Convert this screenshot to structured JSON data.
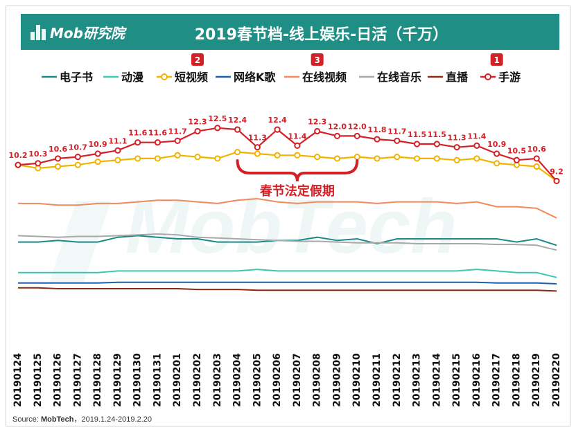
{
  "brand": {
    "name": "Mob研究院"
  },
  "title": "2019春节档-线上娱乐-日活（千万）",
  "source": {
    "label": "Source:",
    "org": "MobTech",
    "range": "，2019.1.24-2019.2.20"
  },
  "watermark": "MobTech",
  "annotation": {
    "text": "春节法定假期",
    "color": "#d42027"
  },
  "chart_data": {
    "type": "line",
    "title": "2019春节档-线上娱乐-日活（千万）",
    "xlabel": "",
    "ylabel": "",
    "ylim": [
      0,
      14
    ],
    "categories": [
      "20190124",
      "20190125",
      "20190126",
      "20190127",
      "20190128",
      "20190129",
      "20190130",
      "20190131",
      "20190201",
      "20190202",
      "20190203",
      "20190204",
      "20190205",
      "20190206",
      "20190207",
      "20190208",
      "20190209",
      "20190210",
      "20190211",
      "20190212",
      "20190213",
      "20190214",
      "20190215",
      "20190216",
      "20190217",
      "20190218",
      "20190219",
      "20190220"
    ],
    "series": [
      {
        "name": "电子书",
        "color": "#1a8a86",
        "marker": false,
        "values": [
          5.4,
          5.4,
          5.5,
          5.4,
          5.4,
          5.7,
          5.8,
          5.7,
          5.6,
          5.6,
          5.4,
          5.4,
          5.4,
          5.5,
          5.5,
          5.7,
          5.5,
          5.6,
          5.3,
          5.6,
          5.6,
          5.6,
          5.6,
          5.6,
          5.6,
          5.4,
          5.6,
          5.2
        ]
      },
      {
        "name": "动漫",
        "color": "#3cc8b0",
        "marker": false,
        "values": [
          3.5,
          3.5,
          3.5,
          3.5,
          3.5,
          3.6,
          3.6,
          3.6,
          3.6,
          3.6,
          3.6,
          3.6,
          3.7,
          3.6,
          3.6,
          3.6,
          3.6,
          3.6,
          3.6,
          3.6,
          3.6,
          3.6,
          3.6,
          3.7,
          3.6,
          3.5,
          3.5,
          3.2
        ]
      },
      {
        "name": "短视频",
        "color": "#f0b400",
        "marker": true,
        "values": [
          10.2,
          10.0,
          10.1,
          10.2,
          10.4,
          10.5,
          10.6,
          10.6,
          10.8,
          10.7,
          10.6,
          11.0,
          10.9,
          10.8,
          10.8,
          10.7,
          10.6,
          10.7,
          10.6,
          10.7,
          10.6,
          10.6,
          10.5,
          10.6,
          10.3,
          10.2,
          10.1,
          9.2
        ]
      },
      {
        "name": "网络K歌",
        "color": "#1f5fa8",
        "marker": false,
        "values": [
          2.85,
          2.85,
          2.85,
          2.85,
          2.85,
          2.9,
          2.9,
          2.9,
          2.9,
          2.9,
          2.9,
          2.9,
          2.9,
          2.9,
          2.9,
          2.9,
          2.9,
          2.9,
          2.9,
          2.9,
          2.9,
          2.9,
          2.9,
          2.9,
          2.85,
          2.85,
          2.85,
          2.8
        ]
      },
      {
        "name": "在线视频",
        "color": "#ef8a5a",
        "marker": false,
        "values": [
          7.8,
          7.8,
          7.7,
          7.7,
          7.8,
          7.8,
          7.9,
          8.0,
          8.0,
          7.9,
          7.8,
          8.0,
          8.1,
          7.9,
          7.8,
          7.9,
          7.9,
          7.9,
          7.8,
          7.9,
          7.9,
          7.9,
          7.8,
          7.9,
          7.6,
          7.6,
          7.5,
          6.9
        ]
      },
      {
        "name": "在线音乐",
        "color": "#a8a8a8",
        "marker": false,
        "values": [
          5.8,
          5.75,
          5.7,
          5.75,
          5.75,
          5.8,
          5.85,
          5.9,
          5.85,
          5.7,
          5.65,
          5.6,
          5.55,
          5.5,
          5.45,
          5.45,
          5.4,
          5.35,
          5.35,
          5.35,
          5.3,
          5.3,
          5.3,
          5.3,
          5.25,
          5.25,
          5.2,
          4.9
        ]
      },
      {
        "name": "直播",
        "color": "#8b2a10",
        "marker": false,
        "values": [
          2.55,
          2.55,
          2.5,
          2.5,
          2.5,
          2.5,
          2.5,
          2.5,
          2.5,
          2.45,
          2.45,
          2.45,
          2.4,
          2.4,
          2.4,
          2.4,
          2.4,
          2.4,
          2.4,
          2.4,
          2.4,
          2.4,
          2.4,
          2.4,
          2.4,
          2.4,
          2.4,
          2.35
        ]
      },
      {
        "name": "手游",
        "color": "#d42027",
        "marker": true,
        "values": [
          10.2,
          10.3,
          10.6,
          10.7,
          10.9,
          11.1,
          11.6,
          11.6,
          11.7,
          12.3,
          12.5,
          12.4,
          11.3,
          12.4,
          11.4,
          12.3,
          12.0,
          12.0,
          11.8,
          11.7,
          11.5,
          11.5,
          11.3,
          11.4,
          10.9,
          10.5,
          10.6,
          9.2
        ],
        "labels": [
          "10.2",
          "10.3",
          "10.6",
          "10.7",
          "10.9",
          "11.1",
          "11.6",
          "11.6",
          "11.7",
          "12.3",
          "12.5",
          "12.4",
          "11.3",
          "12.4",
          "11.4",
          "12.3",
          "12.0",
          "12.0",
          "11.8",
          "11.7",
          "11.5",
          "11.5",
          "11.3",
          "11.4",
          "10.9",
          "10.5",
          "10.6",
          "9.2"
        ]
      }
    ],
    "callouts": [
      {
        "label": "1",
        "category": "20190217"
      },
      {
        "label": "2",
        "category": "20190202"
      },
      {
        "label": "3",
        "category": "20190208"
      }
    ],
    "holiday_range": [
      "20190204",
      "20190210"
    ]
  }
}
